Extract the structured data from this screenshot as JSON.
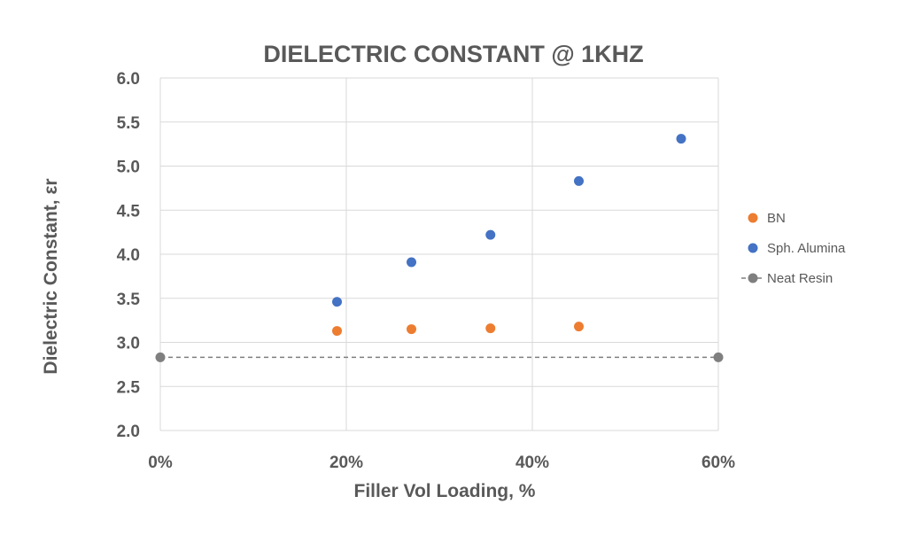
{
  "chart_data": {
    "type": "scatter",
    "title": "DIELECTRIC CONSTANT @ 1KHZ",
    "xlabel": "Filler Vol Loading, %",
    "ylabel": "Dielectric Constant, εr",
    "xlim": [
      0,
      60
    ],
    "ylim": [
      2.0,
      6.0
    ],
    "x_ticks": [
      "0%",
      "20%",
      "40%",
      "60%"
    ],
    "x_tick_values": [
      0,
      20,
      40,
      60
    ],
    "y_ticks": [
      "6.0",
      "5.5",
      "5.0",
      "4.5",
      "4.0",
      "3.5",
      "3.0",
      "2.5",
      "2.0"
    ],
    "y_tick_values": [
      6.0,
      5.5,
      5.0,
      4.5,
      4.0,
      3.5,
      3.0,
      2.5,
      2.0
    ],
    "grid": true,
    "legend_position": "right",
    "series": [
      {
        "name": "BN",
        "color": "#ED7D31",
        "marker": "circle",
        "x": [
          19,
          27,
          35.5,
          45
        ],
        "y": [
          3.13,
          3.15,
          3.16,
          3.18
        ]
      },
      {
        "name": "Sph. Alumina",
        "color": "#4472C4",
        "marker": "circle",
        "x": [
          19,
          27,
          35.5,
          45,
          56
        ],
        "y": [
          3.46,
          3.91,
          4.22,
          4.83,
          5.31
        ]
      },
      {
        "name": "Neat Resin",
        "color": "#7F7F7F",
        "marker": "circle",
        "line": "dashed",
        "x": [
          0,
          60
        ],
        "y": [
          2.83,
          2.83
        ]
      }
    ]
  }
}
